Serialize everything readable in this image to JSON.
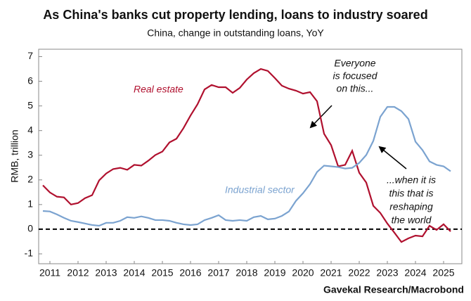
{
  "chart_data": {
    "type": "line",
    "title": "As China's banks cut property lending, loans to industry soared",
    "subtitle": "China, change in outstanding loans, YoY",
    "y_label": "RMB, trillion",
    "source": "Gavekal Research/Macrobond",
    "xlim": [
      2011.1,
      2026.15
    ],
    "xticks": [
      {
        "value": 2011.5,
        "label": "2011"
      },
      {
        "value": 2012.5,
        "label": "2012"
      },
      {
        "value": 2013.5,
        "label": "2013"
      },
      {
        "value": 2014.5,
        "label": "2014"
      },
      {
        "value": 2015.5,
        "label": "2015"
      },
      {
        "value": 2016.5,
        "label": "2016"
      },
      {
        "value": 2017.5,
        "label": "2017"
      },
      {
        "value": 2018.5,
        "label": "2018"
      },
      {
        "value": 2019.5,
        "label": "2019"
      },
      {
        "value": 2020.5,
        "label": "2020"
      },
      {
        "value": 2021.5,
        "label": "2021"
      },
      {
        "value": 2022.5,
        "label": "2022"
      },
      {
        "value": 2023.5,
        "label": "2023"
      },
      {
        "value": 2024.5,
        "label": "2024"
      },
      {
        "value": 2025.5,
        "label": "2025"
      }
    ],
    "ylim": [
      -1.4,
      7.3
    ],
    "yticks": [
      -1,
      0,
      1,
      2,
      3,
      4,
      5,
      6,
      7
    ],
    "x": [
      2011.25,
      2011.5,
      2011.75,
      2012,
      2012.25,
      2012.5,
      2012.75,
      2013,
      2013.25,
      2013.5,
      2013.75,
      2014,
      2014.25,
      2014.5,
      2014.75,
      2015,
      2015.25,
      2015.5,
      2015.75,
      2016,
      2016.25,
      2016.5,
      2016.75,
      2017,
      2017.25,
      2017.5,
      2017.75,
      2018,
      2018.25,
      2018.5,
      2018.75,
      2019,
      2019.25,
      2019.5,
      2019.75,
      2020,
      2020.25,
      2020.5,
      2020.75,
      2021,
      2021.25,
      2021.5,
      2021.75,
      2022,
      2022.25,
      2022.5,
      2022.75,
      2023,
      2023.25,
      2023.5,
      2023.75,
      2024,
      2024.25,
      2024.5,
      2024.75,
      2025,
      2025.25,
      2025.5,
      2025.75
    ],
    "series": [
      {
        "name": "Real estate",
        "color": "#b0102e",
        "values": [
          1.78,
          1.49,
          1.32,
          1.29,
          1.0,
          1.06,
          1.26,
          1.38,
          1.98,
          2.26,
          2.44,
          2.49,
          2.41,
          2.61,
          2.58,
          2.78,
          3.01,
          3.15,
          3.52,
          3.67,
          4.1,
          4.61,
          5.07,
          5.67,
          5.85,
          5.76,
          5.76,
          5.53,
          5.73,
          6.07,
          6.33,
          6.5,
          6.42,
          6.13,
          5.82,
          5.7,
          5.62,
          5.5,
          5.56,
          5.19,
          3.87,
          3.41,
          2.55,
          2.61,
          3.18,
          2.29,
          1.89,
          0.95,
          0.66,
          0.23,
          -0.14,
          -0.52,
          -0.37,
          -0.26,
          -0.29,
          0.14,
          -0.03,
          0.2,
          -0.09
        ]
      },
      {
        "name": "Industrial sector",
        "color": "#7ba3d0",
        "values": [
          0.74,
          0.72,
          0.6,
          0.46,
          0.34,
          0.29,
          0.23,
          0.17,
          0.14,
          0.26,
          0.26,
          0.34,
          0.49,
          0.46,
          0.52,
          0.46,
          0.37,
          0.37,
          0.34,
          0.26,
          0.2,
          0.17,
          0.2,
          0.37,
          0.46,
          0.57,
          0.37,
          0.34,
          0.37,
          0.34,
          0.49,
          0.54,
          0.4,
          0.43,
          0.54,
          0.72,
          1.15,
          1.46,
          1.83,
          2.32,
          2.58,
          2.55,
          2.52,
          2.46,
          2.49,
          2.69,
          3.01,
          3.58,
          4.56,
          4.96,
          4.96,
          4.79,
          4.47,
          3.55,
          3.21,
          2.75,
          2.61,
          2.55,
          2.35
        ]
      }
    ],
    "annotations": [
      [
        "Everyone",
        "is focused",
        "on this..."
      ],
      [
        "...when it is",
        "this that is",
        "reshaping",
        "the world"
      ]
    ]
  }
}
